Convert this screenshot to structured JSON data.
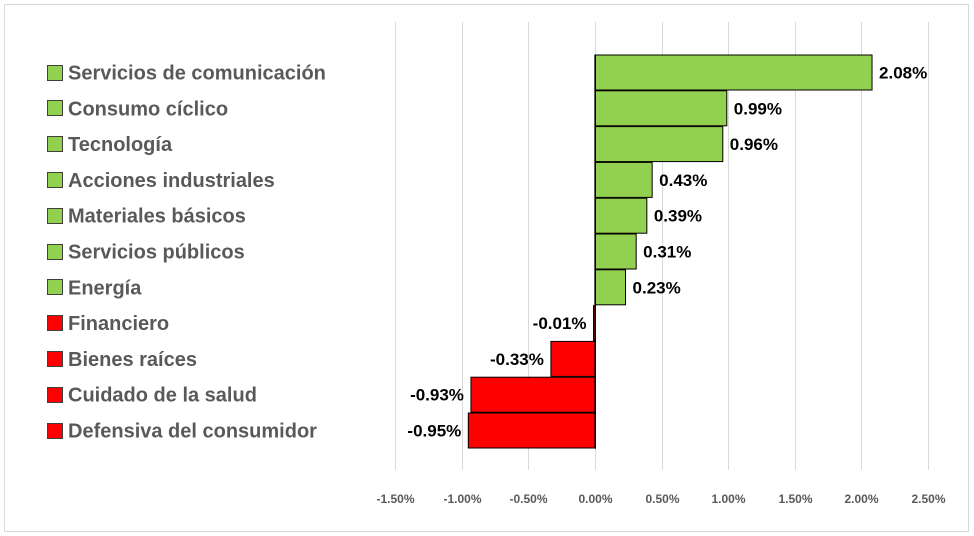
{
  "chart_data": {
    "type": "bar",
    "orientation": "horizontal",
    "categories": [
      "Servicios de comunicación",
      "Consumo cíclico",
      "Tecnología",
      "Acciones industriales",
      "Materiales básicos",
      "Servicios públicos",
      "Energía",
      "Financiero",
      "Bienes raíces",
      "Cuidado de la salud",
      "Defensiva del consumidor"
    ],
    "values": [
      2.08,
      0.99,
      0.96,
      0.43,
      0.39,
      0.31,
      0.23,
      -0.01,
      -0.33,
      -0.93,
      -0.95
    ],
    "data_labels": [
      "2.08%",
      "0.99%",
      "0.96%",
      "0.43%",
      "0.39%",
      "0.31%",
      "0.23%",
      "-0.01%",
      "-0.33%",
      "-0.93%",
      "-0.95%"
    ],
    "xlim": [
      -1.5,
      2.5
    ],
    "x_ticks": [
      -1.5,
      -1.0,
      -0.5,
      0.0,
      0.5,
      1.0,
      1.5,
      2.0,
      2.5
    ],
    "x_tick_labels": [
      "-1.50%",
      "-1.00%",
      "-0.50%",
      "0.00%",
      "0.50%",
      "1.00%",
      "1.50%",
      "2.00%",
      "2.50%"
    ],
    "grid": true,
    "legend": "left",
    "colors": {
      "positive": "#92d050",
      "negative": "#ff0000"
    },
    "title": "",
    "xlabel": "",
    "ylabel": ""
  }
}
